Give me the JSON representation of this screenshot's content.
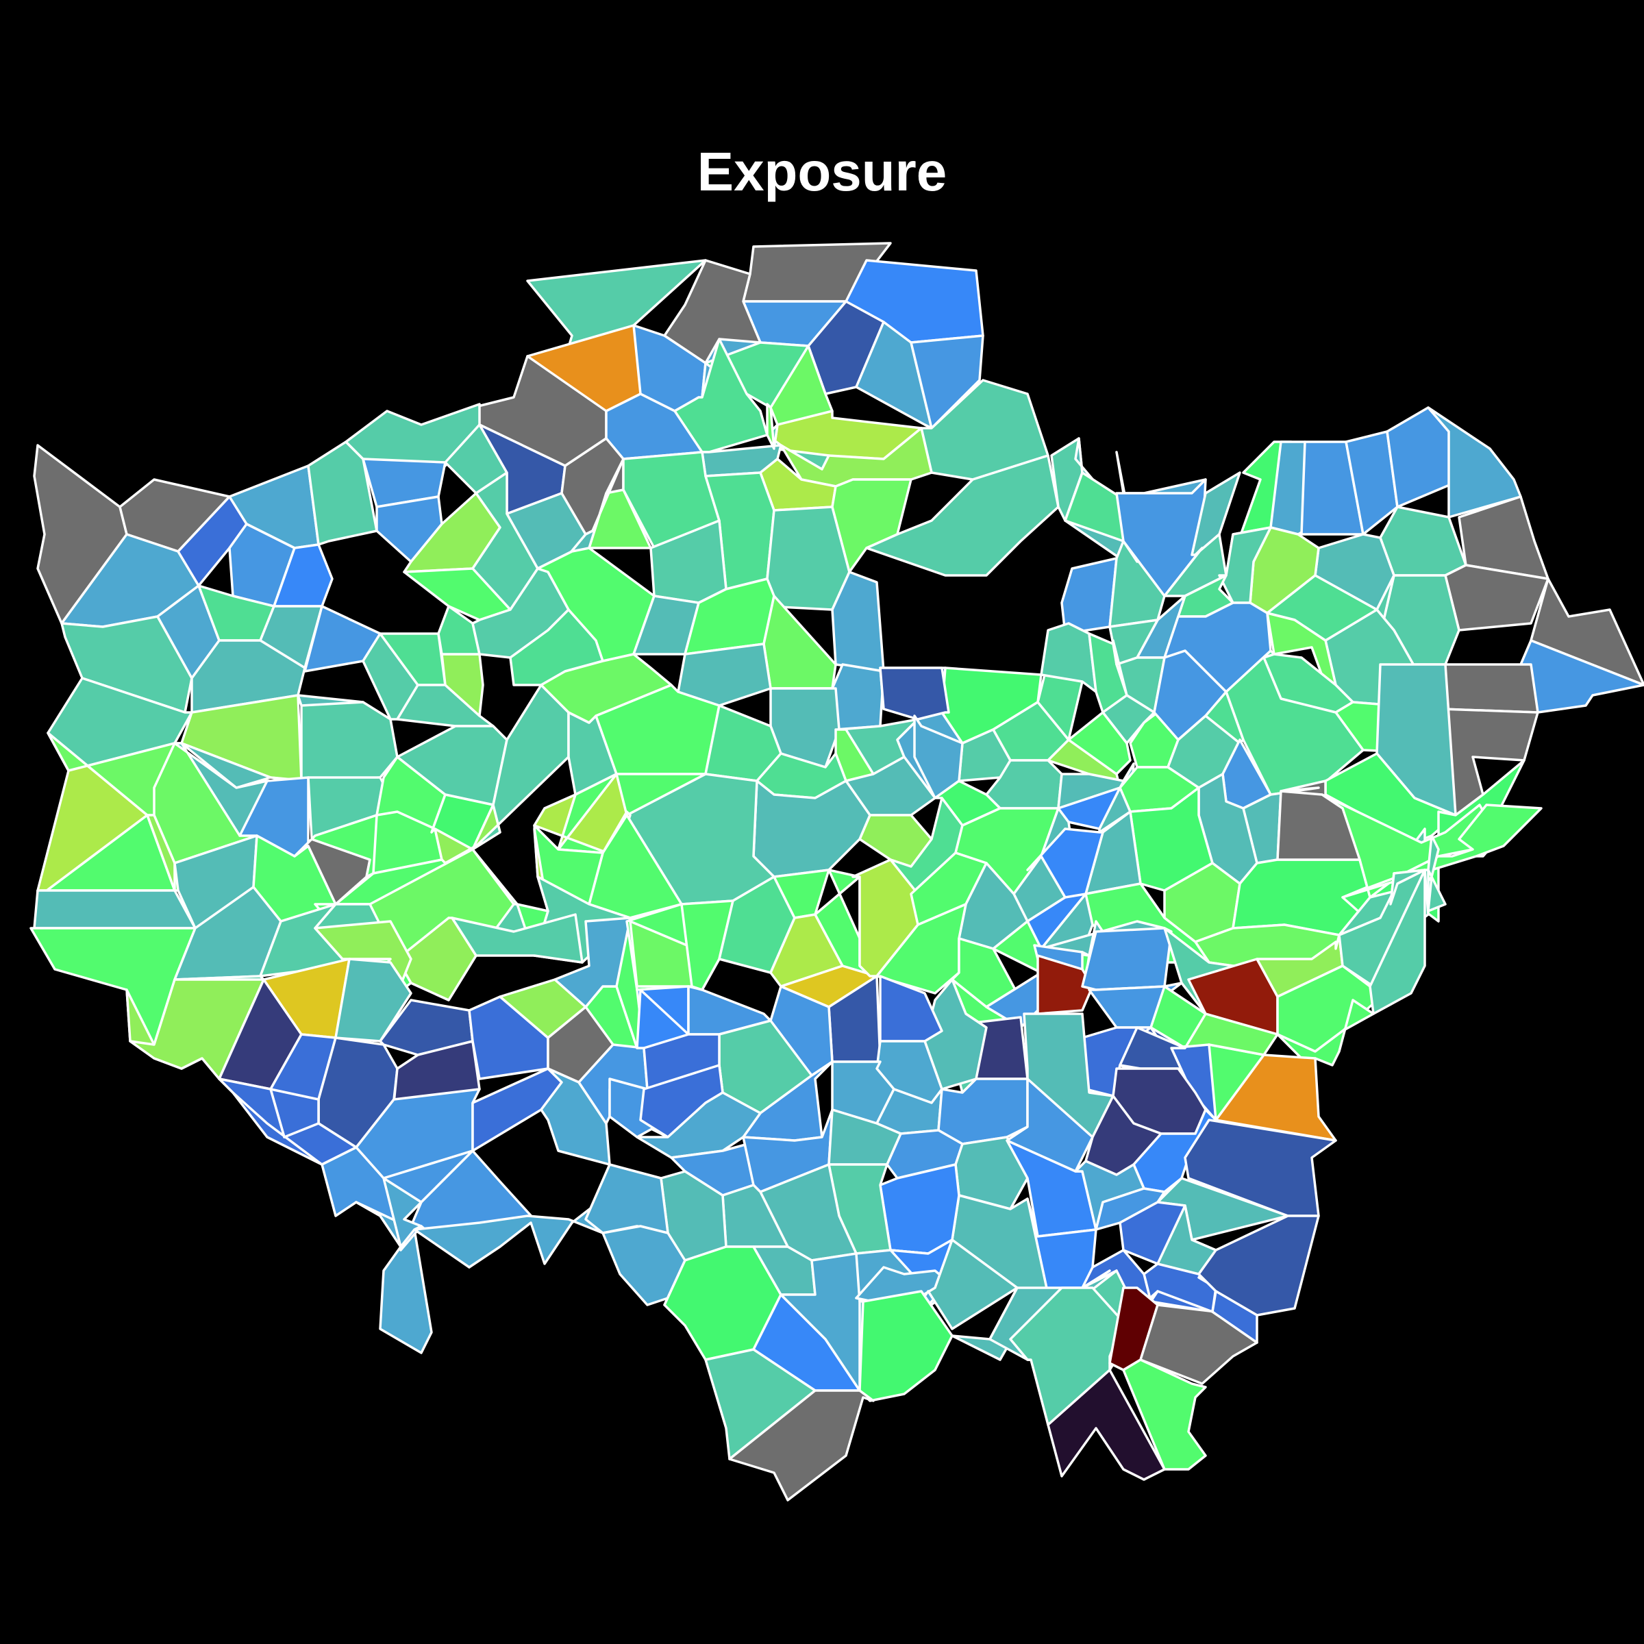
{
  "map": {
    "title": "Exposure",
    "background": "#000000",
    "border_color": "#ffffff",
    "palette": {
      "missing": "#6e6e6e",
      "very_low": "#220f2e",
      "dark_navy": "#353b7a",
      "navy": "#3558a8",
      "royal_blue": "#3a6fd8",
      "azure": "#3788f8",
      "sky_blue": "#4697e2",
      "steel_blue": "#4ea8d0",
      "teal": "#54bcb6",
      "sea_green": "#55cca8",
      "mint": "#4fde93",
      "bright_green": "#43f870",
      "spring_green": "#52fb6e",
      "light_green": "#6cf866",
      "lime": "#90ee5a",
      "yellow_green": "#acea4a",
      "gold": "#dec721",
      "orange": "#e89a22",
      "dark_orange": "#e8901c",
      "dark_red": "#921b0b",
      "maroon": "#5f0002"
    }
  }
}
